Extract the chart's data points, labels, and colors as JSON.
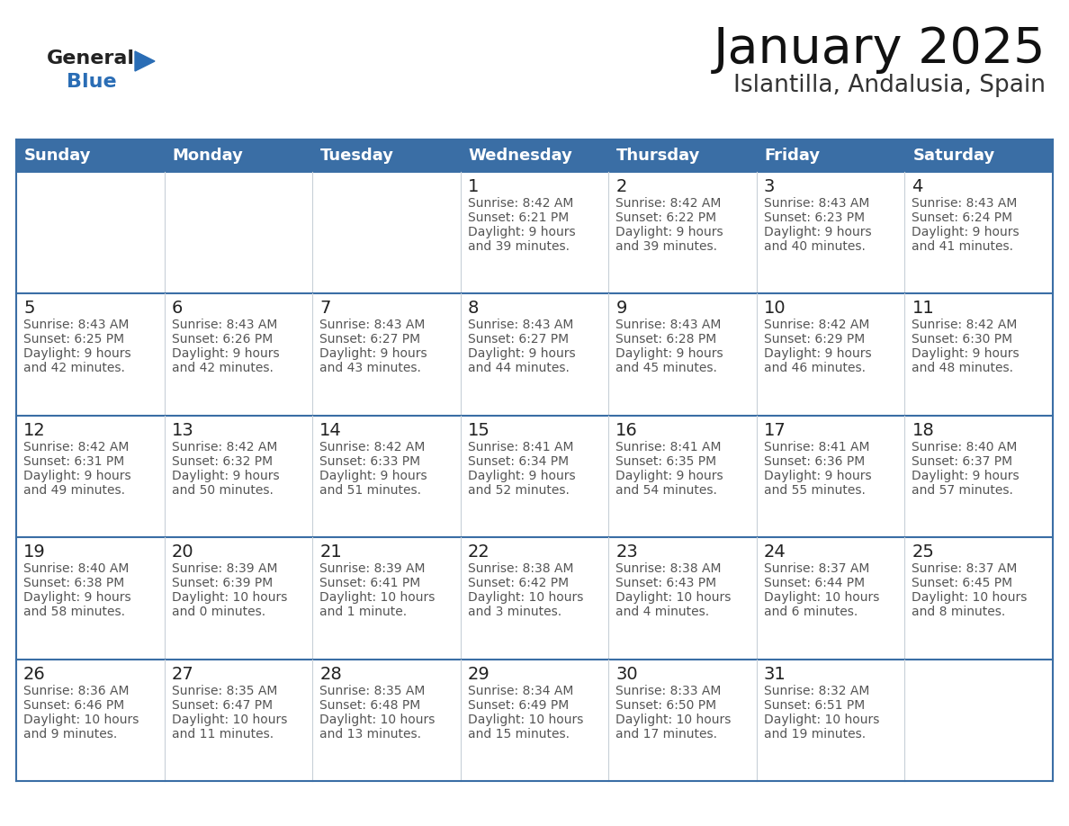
{
  "title": "January 2025",
  "subtitle": "Islantilla, Andalusia, Spain",
  "days_of_week": [
    "Sunday",
    "Monday",
    "Tuesday",
    "Wednesday",
    "Thursday",
    "Friday",
    "Saturday"
  ],
  "header_bg": "#3a6ea5",
  "header_text": "#ffffff",
  "row_bg": "#ffffff",
  "row_separator_color": "#3a6ea5",
  "col_separator_color": "#c8d0d8",
  "day_number_color": "#222222",
  "text_color": "#555555",
  "title_color": "#111111",
  "subtitle_color": "#333333",
  "logo_general_color": "#222222",
  "logo_blue_color": "#2a6db5",
  "calendar": [
    [
      null,
      null,
      null,
      {
        "day": 1,
        "sunrise": "8:42 AM",
        "sunset": "6:21 PM",
        "daylight": "9 hours and 39 minutes."
      },
      {
        "day": 2,
        "sunrise": "8:42 AM",
        "sunset": "6:22 PM",
        "daylight": "9 hours and 39 minutes."
      },
      {
        "day": 3,
        "sunrise": "8:43 AM",
        "sunset": "6:23 PM",
        "daylight": "9 hours and 40 minutes."
      },
      {
        "day": 4,
        "sunrise": "8:43 AM",
        "sunset": "6:24 PM",
        "daylight": "9 hours and 41 minutes."
      }
    ],
    [
      {
        "day": 5,
        "sunrise": "8:43 AM",
        "sunset": "6:25 PM",
        "daylight": "9 hours and 42 minutes."
      },
      {
        "day": 6,
        "sunrise": "8:43 AM",
        "sunset": "6:26 PM",
        "daylight": "9 hours and 42 minutes."
      },
      {
        "day": 7,
        "sunrise": "8:43 AM",
        "sunset": "6:27 PM",
        "daylight": "9 hours and 43 minutes."
      },
      {
        "day": 8,
        "sunrise": "8:43 AM",
        "sunset": "6:27 PM",
        "daylight": "9 hours and 44 minutes."
      },
      {
        "day": 9,
        "sunrise": "8:43 AM",
        "sunset": "6:28 PM",
        "daylight": "9 hours and 45 minutes."
      },
      {
        "day": 10,
        "sunrise": "8:42 AM",
        "sunset": "6:29 PM",
        "daylight": "9 hours and 46 minutes."
      },
      {
        "day": 11,
        "sunrise": "8:42 AM",
        "sunset": "6:30 PM",
        "daylight": "9 hours and 48 minutes."
      }
    ],
    [
      {
        "day": 12,
        "sunrise": "8:42 AM",
        "sunset": "6:31 PM",
        "daylight": "9 hours and 49 minutes."
      },
      {
        "day": 13,
        "sunrise": "8:42 AM",
        "sunset": "6:32 PM",
        "daylight": "9 hours and 50 minutes."
      },
      {
        "day": 14,
        "sunrise": "8:42 AM",
        "sunset": "6:33 PM",
        "daylight": "9 hours and 51 minutes."
      },
      {
        "day": 15,
        "sunrise": "8:41 AM",
        "sunset": "6:34 PM",
        "daylight": "9 hours and 52 minutes."
      },
      {
        "day": 16,
        "sunrise": "8:41 AM",
        "sunset": "6:35 PM",
        "daylight": "9 hours and 54 minutes."
      },
      {
        "day": 17,
        "sunrise": "8:41 AM",
        "sunset": "6:36 PM",
        "daylight": "9 hours and 55 minutes."
      },
      {
        "day": 18,
        "sunrise": "8:40 AM",
        "sunset": "6:37 PM",
        "daylight": "9 hours and 57 minutes."
      }
    ],
    [
      {
        "day": 19,
        "sunrise": "8:40 AM",
        "sunset": "6:38 PM",
        "daylight": "9 hours and 58 minutes."
      },
      {
        "day": 20,
        "sunrise": "8:39 AM",
        "sunset": "6:39 PM",
        "daylight": "10 hours and 0 minutes."
      },
      {
        "day": 21,
        "sunrise": "8:39 AM",
        "sunset": "6:41 PM",
        "daylight": "10 hours and 1 minute."
      },
      {
        "day": 22,
        "sunrise": "8:38 AM",
        "sunset": "6:42 PM",
        "daylight": "10 hours and 3 minutes."
      },
      {
        "day": 23,
        "sunrise": "8:38 AM",
        "sunset": "6:43 PM",
        "daylight": "10 hours and 4 minutes."
      },
      {
        "day": 24,
        "sunrise": "8:37 AM",
        "sunset": "6:44 PM",
        "daylight": "10 hours and 6 minutes."
      },
      {
        "day": 25,
        "sunrise": "8:37 AM",
        "sunset": "6:45 PM",
        "daylight": "10 hours and 8 minutes."
      }
    ],
    [
      {
        "day": 26,
        "sunrise": "8:36 AM",
        "sunset": "6:46 PM",
        "daylight": "10 hours and 9 minutes."
      },
      {
        "day": 27,
        "sunrise": "8:35 AM",
        "sunset": "6:47 PM",
        "daylight": "10 hours and 11 minutes."
      },
      {
        "day": 28,
        "sunrise": "8:35 AM",
        "sunset": "6:48 PM",
        "daylight": "10 hours and 13 minutes."
      },
      {
        "day": 29,
        "sunrise": "8:34 AM",
        "sunset": "6:49 PM",
        "daylight": "10 hours and 15 minutes."
      },
      {
        "day": 30,
        "sunrise": "8:33 AM",
        "sunset": "6:50 PM",
        "daylight": "10 hours and 17 minutes."
      },
      {
        "day": 31,
        "sunrise": "8:32 AM",
        "sunset": "6:51 PM",
        "daylight": "10 hours and 19 minutes."
      },
      null
    ]
  ],
  "figsize": [
    11.88,
    9.18
  ],
  "dpi": 100
}
